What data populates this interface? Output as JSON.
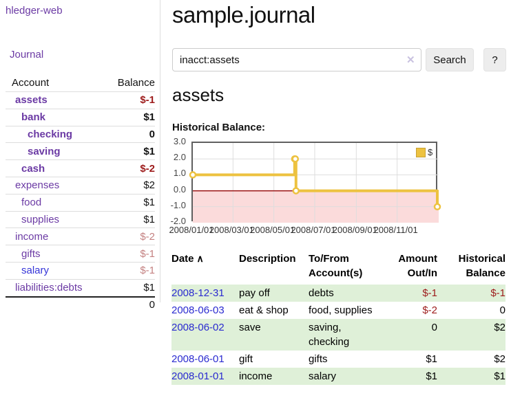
{
  "colors": {
    "accent_purple": "#6b3aa4",
    "link_blue": "#2a2ad0",
    "negative_strong": "#9d1b1b",
    "negative_soft": "#c48181",
    "row_stripe_green": "#dff0d8",
    "series_gold": "#edc240",
    "negative_fill": "#fbdbdb",
    "zero_line": "#991111",
    "grid_line": "#dddddd"
  },
  "sidebar": {
    "app_title": "hledger-web",
    "nav_journal": "Journal",
    "table": {
      "header": {
        "account": "Account",
        "balance": "Balance"
      },
      "accounts": [
        {
          "name": "assets",
          "balance": "$-1"
        },
        {
          "name": "bank",
          "balance": "$1"
        },
        {
          "name": "checking",
          "balance": "0"
        },
        {
          "name": "saving",
          "balance": "$1"
        },
        {
          "name": "cash",
          "balance": "$-2"
        },
        {
          "name": "expenses",
          "balance": "$2"
        },
        {
          "name": "food",
          "balance": "$1"
        },
        {
          "name": "supplies",
          "balance": "$1"
        },
        {
          "name": "income",
          "balance": "$-2"
        },
        {
          "name": "gifts",
          "balance": "$-1"
        },
        {
          "name": "salary",
          "balance": "$-1"
        },
        {
          "name": "liabilities:debts",
          "balance": "$1"
        }
      ],
      "total": "0"
    }
  },
  "main": {
    "title": "sample.journal",
    "search": {
      "value": "inacct:assets",
      "clear_icon": "✕",
      "button_label": "Search",
      "help_label": "?"
    },
    "account_heading": "assets",
    "chart_label": "Historical Balance:"
  },
  "chart_data": {
    "type": "line",
    "step": true,
    "title": "Historical Balance",
    "series": [
      {
        "name": "$",
        "color": "#edc240",
        "points": [
          [
            "2008-01-01",
            1
          ],
          [
            "2008-06-01",
            2
          ],
          [
            "2008-06-02",
            2
          ],
          [
            "2008-06-03",
            0
          ],
          [
            "2008-12-31",
            -1
          ]
        ]
      }
    ],
    "xrange": [
      "2008-01-01",
      "2008-12-31"
    ],
    "ylim": [
      -2,
      3
    ],
    "yticks": [
      3,
      2,
      1,
      0,
      -1,
      -2
    ],
    "ytick_labels": [
      "3.0",
      "2.0",
      "1.0",
      "0.0",
      "-1.0",
      "-2.0"
    ],
    "xticks": [
      "2008-01-01",
      "2008-03-01",
      "2008-05-01",
      "2008-07-01",
      "2008-09-01",
      "2008-11-01"
    ],
    "xtick_labels": [
      "2008/01/01",
      "2008/03/01",
      "2008/05/01",
      "2008/07/01",
      "2008/09/01",
      "2008/11/01"
    ],
    "grid": true,
    "legend": {
      "label": "$",
      "position": "top-right"
    },
    "negative_region_shaded": true
  },
  "table": {
    "headers": {
      "date": "Date",
      "sort_icon": "∧",
      "description": "Description",
      "account": "To/From Account(s)",
      "amount": "Amount Out/In",
      "balance": "Historical Balance"
    },
    "rows": [
      {
        "date": "2008-12-31",
        "description": "pay off",
        "account": "debts",
        "amount": "$-1",
        "balance": "$-1"
      },
      {
        "date": "2008-06-03",
        "description": "eat & shop",
        "account": "food, supplies",
        "amount": "$-2",
        "balance": "0"
      },
      {
        "date": "2008-06-02",
        "description": "save",
        "account": "saving, checking",
        "amount": "0",
        "balance": "$2"
      },
      {
        "date": "2008-06-01",
        "description": "gift",
        "account": "gifts",
        "amount": "$1",
        "balance": "$2"
      },
      {
        "date": "2008-01-01",
        "description": "income",
        "account": "salary",
        "amount": "$1",
        "balance": "$1"
      }
    ]
  }
}
